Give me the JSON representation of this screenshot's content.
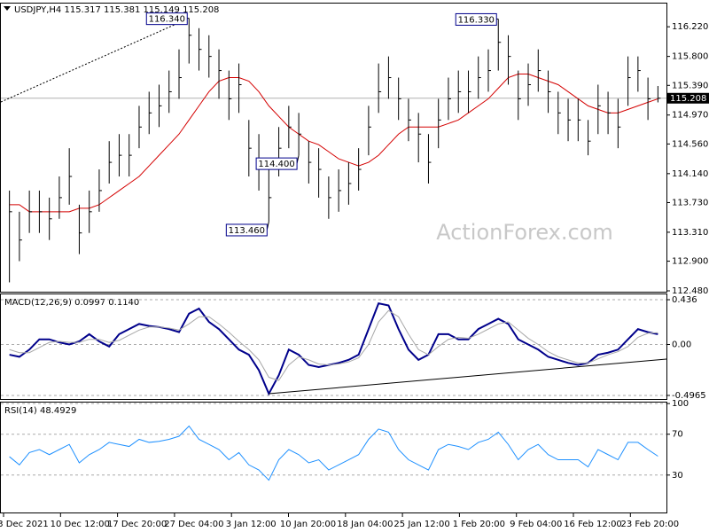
{
  "chart_data": [
    {
      "type": "ohlc",
      "title": "USDJPY,H4  115.317 115.381 115.149 115.208",
      "color": "#000000",
      "high": [
        113.9,
        113.6,
        113.9,
        113.9,
        113.8,
        114.1,
        114.5,
        113.7,
        113.9,
        114.2,
        114.6,
        114.7,
        114.7,
        115.1,
        115.3,
        115.4,
        115.6,
        115.9,
        116.34,
        116.2,
        116.1,
        115.9,
        115.6,
        115.7,
        114.9,
        114.7,
        114.2,
        114.8,
        115.1,
        115.0,
        114.6,
        114.5,
        114.1,
        114.2,
        114.3,
        114.5,
        115.1,
        115.7,
        115.8,
        115.5,
        115.2,
        115.0,
        114.7,
        115.2,
        115.5,
        115.6,
        115.6,
        115.8,
        115.9,
        116.33,
        116.1,
        115.6,
        115.7,
        115.9,
        115.6,
        115.3,
        115.2,
        115.2,
        114.9,
        115.4,
        115.3,
        115.2,
        115.8,
        115.8,
        115.5,
        115.381
      ],
      "low": [
        112.6,
        112.9,
        113.3,
        113.3,
        113.2,
        113.5,
        113.7,
        113.0,
        113.3,
        113.6,
        114.0,
        114.1,
        114.1,
        114.5,
        114.7,
        114.8,
        115.0,
        115.2,
        115.7,
        115.6,
        115.5,
        115.2,
        114.9,
        115.0,
        114.1,
        113.9,
        113.46,
        114.1,
        114.5,
        114.4,
        114.0,
        113.8,
        113.5,
        113.6,
        113.7,
        113.9,
        114.4,
        115.0,
        115.2,
        114.9,
        114.6,
        114.3,
        114.0,
        114.5,
        114.9,
        115.0,
        115.0,
        115.2,
        115.3,
        115.6,
        115.4,
        114.9,
        115.1,
        115.3,
        115.0,
        114.7,
        114.6,
        114.6,
        114.4,
        114.7,
        114.7,
        114.5,
        115.1,
        115.3,
        114.9,
        115.149
      ],
      "close": [
        113.6,
        113.2,
        113.6,
        113.6,
        113.5,
        113.8,
        114.1,
        113.3,
        113.6,
        113.9,
        114.3,
        114.4,
        114.4,
        114.8,
        115.0,
        115.1,
        115.3,
        115.5,
        116.1,
        115.9,
        115.8,
        115.6,
        115.2,
        115.4,
        114.5,
        114.3,
        113.8,
        114.5,
        114.8,
        114.7,
        114.3,
        114.2,
        113.8,
        113.9,
        114.0,
        114.2,
        114.8,
        115.3,
        115.5,
        115.2,
        114.9,
        114.7,
        114.3,
        114.9,
        115.2,
        115.3,
        115.3,
        115.5,
        115.6,
        116.0,
        115.8,
        115.2,
        115.4,
        115.6,
        115.3,
        115.0,
        114.9,
        114.9,
        114.6,
        115.1,
        115.0,
        114.8,
        115.5,
        115.6,
        115.2,
        115.208
      ],
      "moving_average": {
        "color": "#d40000",
        "values": [
          113.7,
          113.7,
          113.6,
          113.6,
          113.6,
          113.6,
          113.6,
          113.65,
          113.65,
          113.7,
          113.8,
          113.9,
          114.0,
          114.1,
          114.25,
          114.4,
          114.55,
          114.7,
          114.9,
          115.1,
          115.3,
          115.45,
          115.5,
          115.5,
          115.45,
          115.3,
          115.1,
          114.95,
          114.8,
          114.7,
          114.6,
          114.55,
          114.45,
          114.35,
          114.3,
          114.25,
          114.3,
          114.4,
          114.55,
          114.7,
          114.8,
          114.8,
          114.8,
          114.8,
          114.85,
          114.9,
          115.0,
          115.1,
          115.2,
          115.35,
          115.5,
          115.55,
          115.55,
          115.5,
          115.45,
          115.4,
          115.3,
          115.2,
          115.1,
          115.05,
          115.0,
          115.0,
          115.05,
          115.1,
          115.15,
          115.2
        ]
      },
      "annotations": [
        "116.340",
        "116.330",
        "113.460",
        "114.400"
      ],
      "watermark": "ActionForex.com",
      "ylim": [
        112.455,
        116.549
      ],
      "yticks": [
        {
          "value": 116.22,
          "label": "116.220"
        },
        {
          "value": 115.8,
          "label": "115.800"
        },
        {
          "value": 115.39,
          "label": "115.390"
        },
        {
          "value": 114.97,
          "label": "114.970"
        },
        {
          "value": 114.56,
          "label": "114.560"
        },
        {
          "value": 114.14,
          "label": "114.140"
        },
        {
          "value": 113.73,
          "label": "113.730"
        },
        {
          "value": 113.31,
          "label": "113.310"
        },
        {
          "value": 112.9,
          "label": "112.900"
        },
        {
          "value": 112.48,
          "label": "112.480"
        }
      ]
    },
    {
      "type": "line",
      "title": "MACD(12,26,9) 0.0997 0.1140",
      "series": [
        {
          "color": "#00008b",
          "values": [
            -0.1,
            -0.12,
            -0.05,
            0.05,
            0.05,
            0.02,
            0.0,
            0.03,
            0.1,
            0.03,
            -0.02,
            0.1,
            0.15,
            0.2,
            0.18,
            0.17,
            0.15,
            0.12,
            0.3,
            0.35,
            0.22,
            0.15,
            0.05,
            -0.05,
            -0.1,
            -0.25,
            -0.48,
            -0.3,
            -0.05,
            -0.1,
            -0.2,
            -0.22,
            -0.2,
            -0.18,
            -0.15,
            -0.1,
            0.15,
            0.4,
            0.38,
            0.15,
            -0.05,
            -0.15,
            -0.1,
            0.1,
            0.1,
            0.05,
            0.05,
            0.15,
            0.2,
            0.25,
            0.2,
            0.05,
            0.0,
            -0.05,
            -0.12,
            -0.15,
            -0.18,
            -0.2,
            -0.18,
            -0.1,
            -0.08,
            -0.05,
            0.05,
            0.15,
            0.12,
            0.0997
          ]
        },
        {
          "color": "#a8a8a8",
          "values": [
            -0.05,
            -0.08,
            -0.08,
            -0.03,
            0.02,
            0.03,
            0.02,
            0.02,
            0.05,
            0.05,
            0.02,
            0.04,
            0.09,
            0.14,
            0.17,
            0.17,
            0.16,
            0.14,
            0.2,
            0.27,
            0.27,
            0.2,
            0.12,
            0.03,
            -0.05,
            -0.15,
            -0.32,
            -0.35,
            -0.2,
            -0.12,
            -0.15,
            -0.19,
            -0.2,
            -0.19,
            -0.17,
            -0.13,
            0.0,
            0.22,
            0.33,
            0.27,
            0.1,
            -0.05,
            -0.1,
            -0.02,
            0.05,
            0.07,
            0.06,
            0.1,
            0.15,
            0.2,
            0.22,
            0.14,
            0.06,
            0.0,
            -0.07,
            -0.12,
            -0.15,
            -0.18,
            -0.18,
            -0.14,
            -0.1,
            -0.07,
            -0.02,
            0.07,
            0.11,
            0.114
          ]
        }
      ],
      "ylim": [
        -0.54,
        0.488
      ],
      "yticks": [
        0.436,
        {
          "value": 0,
          "label": "0.00"
        },
        -0.4965
      ]
    },
    {
      "type": "line",
      "title": "RSI(14) 48.4929",
      "series": [
        {
          "color": "#1e90ff",
          "values": [
            48,
            40,
            52,
            55,
            50,
            55,
            60,
            42,
            50,
            55,
            62,
            60,
            58,
            65,
            62,
            63,
            65,
            68,
            78,
            65,
            60,
            55,
            45,
            52,
            40,
            35,
            25,
            45,
            55,
            50,
            42,
            45,
            35,
            40,
            45,
            50,
            65,
            75,
            72,
            55,
            45,
            40,
            35,
            55,
            60,
            58,
            55,
            62,
            65,
            72,
            60,
            45,
            55,
            60,
            50,
            45,
            45,
            45,
            38,
            55,
            50,
            45,
            62,
            62,
            55,
            48.4929
          ]
        }
      ],
      "ylim": [
        -7.5,
        101
      ],
      "yticks": [
        100,
        70,
        30
      ]
    }
  ],
  "time_axis": [
    "3 Dec 2021",
    "10 Dec 12:00",
    "17 Dec 20:00",
    "27 Dec 04:00",
    "3 Jan 12:00",
    "10 Jan 20:00",
    "18 Jan 04:00",
    "25 Jan 12:00",
    "1 Feb 20:00",
    "9 Feb 04:00",
    "16 Feb 12:00",
    "23 Feb 20:00"
  ]
}
